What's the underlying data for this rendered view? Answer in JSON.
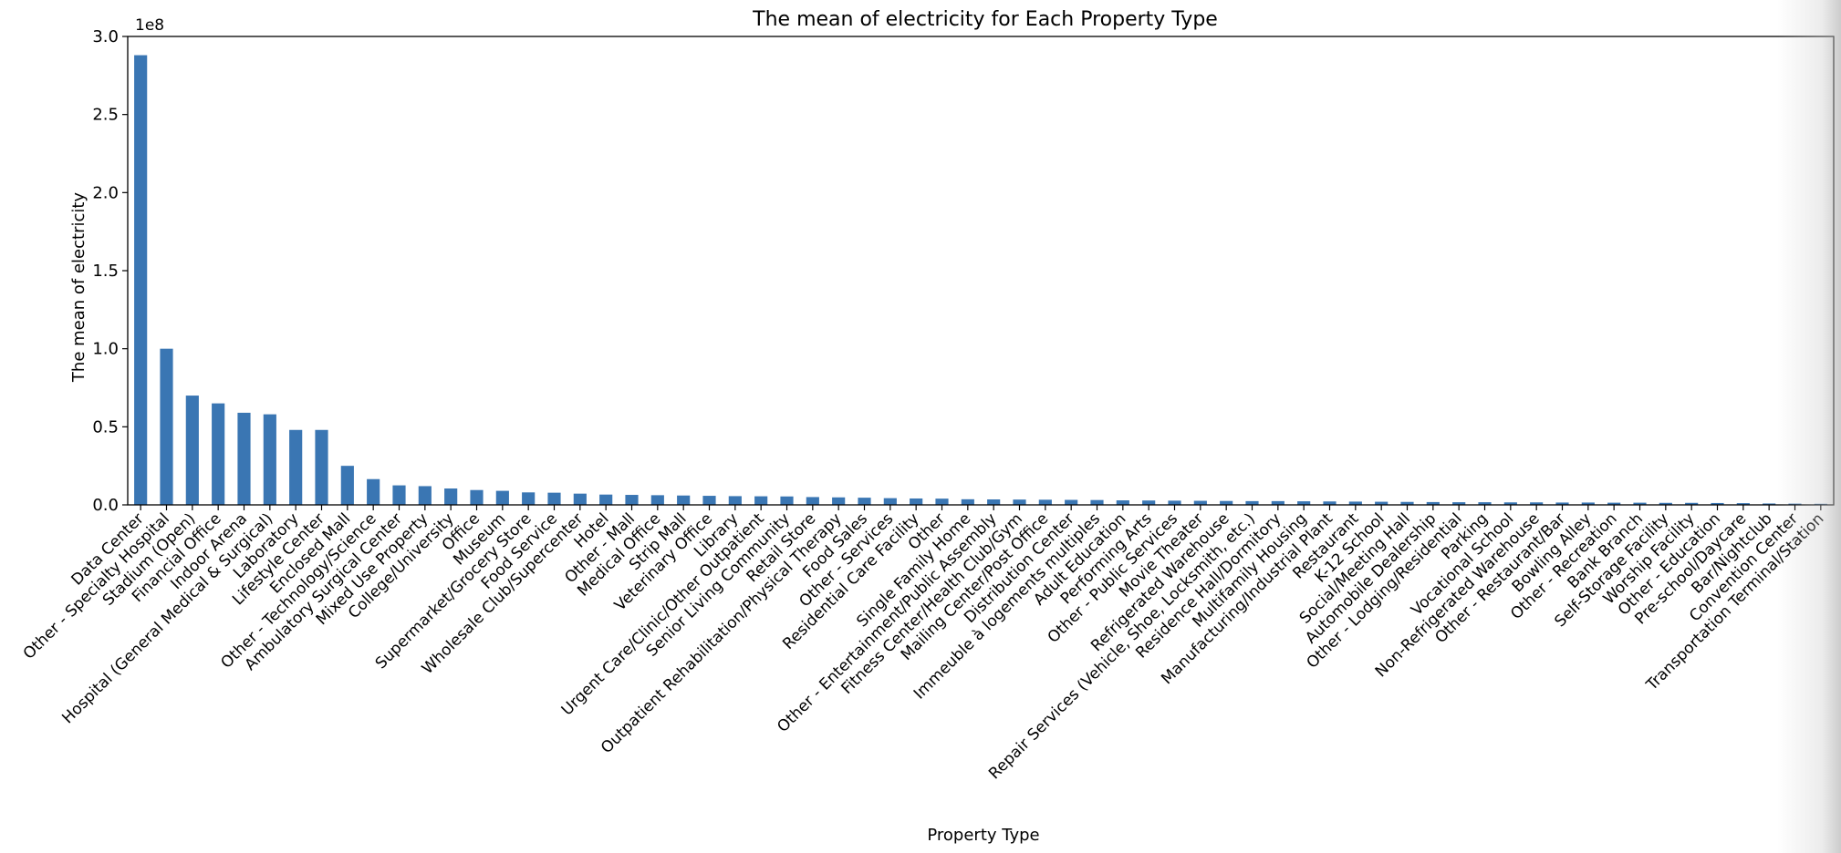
{
  "chart_data": {
    "type": "bar",
    "title": "The mean of electricity for Each Property Type",
    "xlabel": "Property Type",
    "ylabel": "The mean of electricity",
    "y_offset_text": "1e8",
    "ylim": [
      0,
      3.0
    ],
    "yticks": [
      "0.0",
      "0.5",
      "1.0",
      "1.5",
      "2.0",
      "2.5",
      "3.0"
    ],
    "bar_color": "#3a76b3",
    "grid": false,
    "categories": [
      "Data Center",
      "Other - Specialty Hospital",
      "Stadium (Open)",
      "Financial Office",
      "Indoor Arena",
      "Hospital (General Medical & Surgical)",
      "Laboratory",
      "Lifestyle Center",
      "Enclosed Mall",
      "Other - Technology/Science",
      "Ambulatory Surgical Center",
      "Mixed Use Property",
      "College/University",
      "Office",
      "Museum",
      "Supermarket/Grocery Store",
      "Food Service",
      "Wholesale Club/Supercenter",
      "Hotel",
      "Other - Mall",
      "Medical Office",
      "Strip Mall",
      "Veterinary Office",
      "Library",
      "Urgent Care/Clinic/Other Outpatient",
      "Senior Living Community",
      "Retail Store",
      "Outpatient Rehabilitation/Physical Therapy",
      "Food Sales",
      "Other - Services",
      "Residential Care Facility",
      "Other",
      "Single Family Home",
      "Other - Entertainment/Public Assembly",
      "Fitness Center/Health Club/Gym",
      "Mailing Center/Post Office",
      "Distribution Center",
      "Immeuble à logements multiples",
      "Adult Education",
      "Performing Arts",
      "Other - Public Services",
      "Movie Theater",
      "Refrigerated Warehouse",
      "Repair Services (Vehicle, Shoe, Locksmith, etc.)",
      "Residence Hall/Dormitory",
      "Multifamily Housing",
      "Manufacturing/Industrial Plant",
      "Restaurant",
      "K-12 School",
      "Social/Meeting Hall",
      "Automobile Dealership",
      "Other - Lodging/Residential",
      "Parking",
      "Vocational School",
      "Non-Refrigerated Warehouse",
      "Other - Restaurant/Bar",
      "Bowling Alley",
      "Other - Recreation",
      "Bank Branch",
      "Self-Storage Facility",
      "Worship Facility",
      "Other - Education",
      "Pre-school/Daycare",
      "Bar/Nightclub",
      "Convention Center",
      "Transportation Terminal/Station"
    ],
    "values": [
      2.88,
      1.0,
      0.7,
      0.65,
      0.59,
      0.58,
      0.48,
      0.48,
      0.25,
      0.165,
      0.125,
      0.12,
      0.105,
      0.095,
      0.09,
      0.08,
      0.078,
      0.072,
      0.066,
      0.064,
      0.062,
      0.06,
      0.058,
      0.056,
      0.055,
      0.054,
      0.05,
      0.048,
      0.046,
      0.043,
      0.041,
      0.04,
      0.036,
      0.035,
      0.034,
      0.033,
      0.032,
      0.031,
      0.029,
      0.028,
      0.027,
      0.026,
      0.025,
      0.024,
      0.024,
      0.023,
      0.022,
      0.021,
      0.02,
      0.019,
      0.018,
      0.017,
      0.017,
      0.016,
      0.016,
      0.015,
      0.015,
      0.014,
      0.014,
      0.013,
      0.013,
      0.012,
      0.011,
      0.009,
      0.008,
      0.007
    ]
  }
}
